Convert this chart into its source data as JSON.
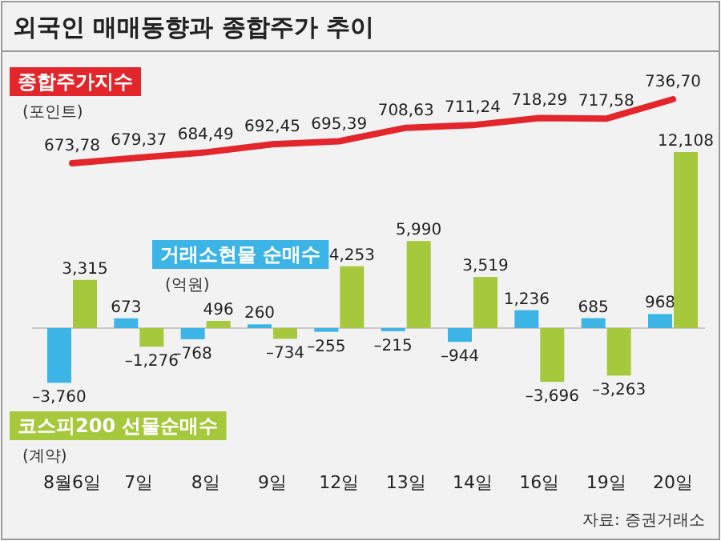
{
  "chart_data": {
    "type": "bar",
    "title": "외국인 매매동향과 종합주가 추이",
    "categories": [
      "8월6일",
      "7일",
      "8일",
      "9일",
      "12일",
      "13일",
      "14일",
      "16일",
      "19일",
      "20일"
    ],
    "series": [
      {
        "name": "종합주가지수",
        "type": "line",
        "axis": "y2",
        "color": "#e3262b",
        "values": [
          673.78,
          679.37,
          684.49,
          692.45,
          695.39,
          708.63,
          711.24,
          718.29,
          717.58,
          736.7
        ],
        "value_labels": [
          "673,78",
          "679,37",
          "684,49",
          "692,45",
          "695,39",
          "708,63",
          "711,24",
          "718,29",
          "717,58",
          "736,70"
        ]
      },
      {
        "name": "거래소현물 순매수",
        "color": "#3cb5e6",
        "values": [
          -3760,
          673,
          -768,
          260,
          -255,
          -215,
          -944,
          1236,
          685,
          968
        ],
        "value_labels": [
          "–3,760",
          "673",
          "–768",
          "260",
          "–255",
          "–215",
          "–944",
          "1,236",
          "685",
          "968"
        ]
      },
      {
        "name": "코스피200 선물순매수",
        "color": "#a6c83c",
        "values": [
          3315,
          -1276,
          496,
          -734,
          4253,
          5990,
          3519,
          -3696,
          -3263,
          12108
        ],
        "value_labels": [
          "3,315",
          "–1,276",
          "496",
          "–734",
          "4,253",
          "5,990",
          "3,519",
          "–3,696",
          "–3,263",
          "12,108"
        ]
      }
    ],
    "annotations": [
      "(포인트)",
      "(억원)",
      "(계약)",
      "자료: 증권거래소"
    ],
    "marker": "none"
  }
}
